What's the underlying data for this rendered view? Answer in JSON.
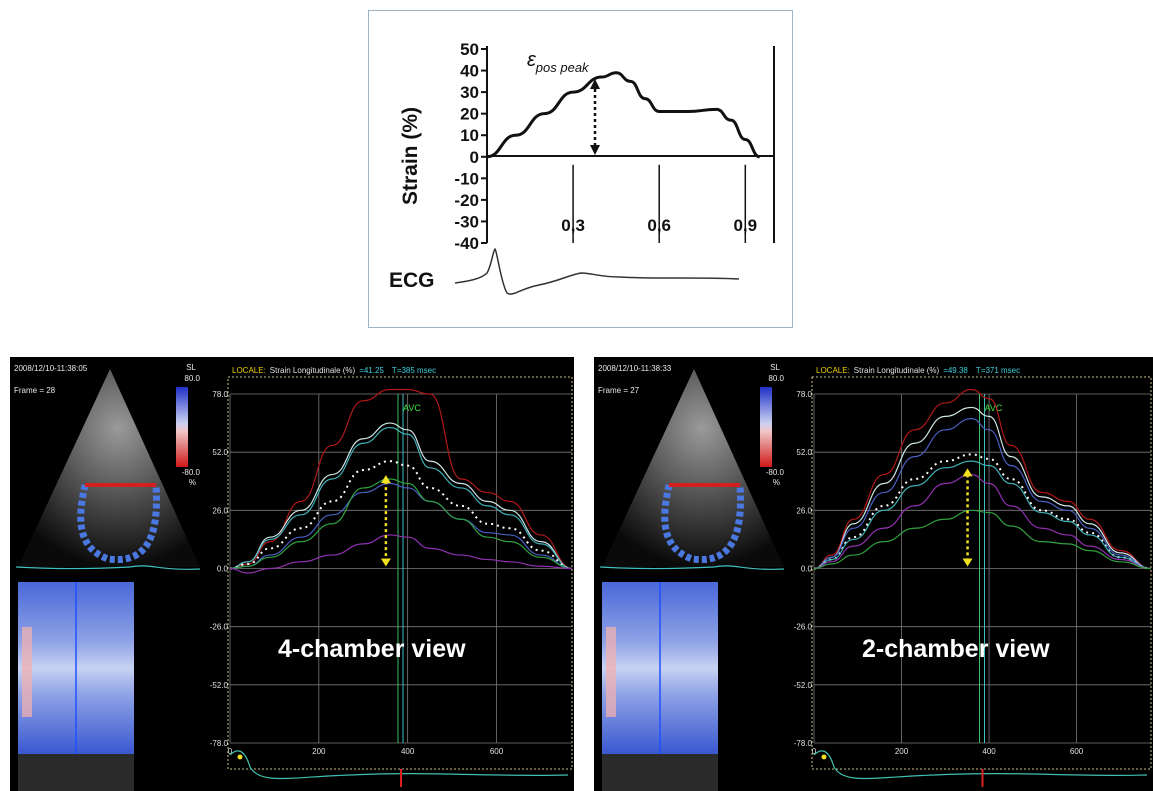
{
  "top_chart": {
    "ylabel": "Strain (%)",
    "peak_label_main": "ε",
    "peak_label_sub": "pos peak",
    "ecg_label": "ECG",
    "y_ticks": [
      "50",
      "40",
      "30",
      "20",
      "10",
      "0",
      "-10",
      "-20",
      "-30",
      "-40"
    ],
    "x_ticks": [
      "0,3",
      "0,6",
      "0,9"
    ]
  },
  "chart_data": [
    {
      "type": "line",
      "ylabel": "Strain (%)",
      "ylim": [
        -40,
        50
      ],
      "xlim": [
        0,
        1.0
      ],
      "x_ticks": [
        0.3,
        0.6,
        0.9
      ],
      "series": [
        {
          "x": [
            0,
            0.1,
            0.2,
            0.3,
            0.4,
            0.45,
            0.5,
            0.55,
            0.6,
            0.7,
            0.8,
            0.85,
            0.9,
            0.95
          ],
          "values": [
            0,
            10,
            20,
            30,
            37,
            39,
            35,
            27,
            21,
            21,
            22,
            17,
            8,
            0
          ]
        }
      ],
      "annotations": [
        "ε pos peak"
      ],
      "ecg_label": "ECG"
    },
    {
      "type": "line",
      "title": "LOCALE: Strain Longitudinale (%) =41.25 T=385 msec",
      "y_ticks": [
        "78.0",
        "52.0",
        "26.0",
        "0.0",
        "-26.0",
        "-52.0",
        "-78.0"
      ],
      "x_ticks": [
        "0",
        "200",
        "400",
        "600"
      ],
      "ylim": [
        -78,
        78
      ],
      "xlim": [
        0,
        770
      ],
      "annotations": [
        "AVC",
        "4-chamber view"
      ],
      "series": [
        {
          "color": "#b01818",
          "values": [
            0,
            2,
            12,
            30,
            55,
            75,
            80,
            80,
            78,
            40,
            34,
            30,
            15,
            0
          ]
        },
        {
          "color": "#cfe6e6",
          "values": [
            0,
            3,
            14,
            26,
            42,
            58,
            65,
            62,
            48,
            38,
            30,
            26,
            12,
            0
          ]
        },
        {
          "color": "#40b0b8",
          "values": [
            0,
            3,
            13,
            24,
            40,
            56,
            63,
            60,
            45,
            36,
            28,
            24,
            11,
            0
          ]
        },
        {
          "color": "#ffffff",
          "dashed": true,
          "values": [
            0,
            2,
            9,
            18,
            30,
            44,
            48,
            46,
            36,
            28,
            20,
            18,
            8,
            0
          ]
        },
        {
          "color": "#4a5fc0",
          "values": [
            0,
            1,
            6,
            14,
            24,
            34,
            38,
            36,
            30,
            22,
            16,
            15,
            6,
            0
          ]
        },
        {
          "color": "#30a040",
          "values": [
            0,
            1,
            5,
            12,
            20,
            36,
            40,
            38,
            30,
            22,
            14,
            12,
            5,
            0
          ]
        },
        {
          "color": "#9030b0",
          "values": [
            0,
            -2,
            0,
            3,
            6,
            11,
            15,
            14,
            9,
            6,
            4,
            3,
            1,
            0
          ]
        }
      ],
      "x": [
        0,
        40,
        90,
        160,
        230,
        300,
        360,
        400,
        450,
        520,
        580,
        630,
        700,
        770
      ]
    },
    {
      "type": "line",
      "title": "LOCALE: Strain Longitudinale (%) =49.38 T=371 msec",
      "y_ticks": [
        "78.0",
        "52.0",
        "26.0",
        "0.0",
        "-26.0",
        "-52.0",
        "-78.0"
      ],
      "x_ticks": [
        "0",
        "200",
        "400",
        "600"
      ],
      "ylim": [
        -78,
        78
      ],
      "xlim": [
        0,
        770
      ],
      "annotations": [
        "AVC",
        "2-chamber view"
      ],
      "series": [
        {
          "color": "#b01818",
          "values": [
            0,
            6,
            22,
            42,
            62,
            74,
            80,
            76,
            55,
            34,
            30,
            22,
            8,
            0
          ]
        },
        {
          "color": "#cfe6e6",
          "values": [
            0,
            5,
            20,
            38,
            56,
            68,
            72,
            68,
            50,
            32,
            28,
            20,
            7,
            0
          ]
        },
        {
          "color": "#4a5fc0",
          "values": [
            0,
            5,
            18,
            34,
            50,
            62,
            67,
            62,
            46,
            30,
            26,
            18,
            6,
            0
          ]
        },
        {
          "color": "#ffffff",
          "dashed": true,
          "values": [
            0,
            4,
            14,
            28,
            40,
            48,
            51,
            49,
            40,
            26,
            22,
            16,
            5,
            0
          ]
        },
        {
          "color": "#40b0b8",
          "values": [
            0,
            4,
            13,
            26,
            37,
            45,
            48,
            46,
            38,
            25,
            21,
            15,
            5,
            0
          ]
        },
        {
          "color": "#9030b0",
          "values": [
            0,
            3,
            10,
            18,
            28,
            38,
            42,
            38,
            28,
            18,
            15,
            10,
            4,
            0
          ]
        },
        {
          "color": "#30a040",
          "values": [
            0,
            2,
            6,
            12,
            18,
            22,
            26,
            25,
            19,
            12,
            11,
            8,
            3,
            0
          ]
        }
      ],
      "x": [
        0,
        40,
        90,
        160,
        230,
        300,
        360,
        400,
        450,
        520,
        580,
        630,
        700,
        770
      ]
    }
  ],
  "panels": [
    {
      "timestamp": "2008/12/10-11:38:05",
      "frame": "Frame = 28",
      "scale_label": "SL",
      "scale_max": "80.0",
      "scale_min": "-80.0",
      "scale_unit": "%",
      "header_locale": "LOCALE:",
      "header_text": "Strain Longitudinale (%)",
      "header_value": "=41.25",
      "header_time": "T=385 msec",
      "avc_label": "AVC",
      "view_label": "4-chamber view"
    },
    {
      "timestamp": "2008/12/10-11:38:33",
      "frame": "Frame = 27",
      "scale_label": "SL",
      "scale_max": "80.0",
      "scale_min": "-80.0",
      "scale_unit": "%",
      "header_locale": "LOCALE:",
      "header_text": "Strain Longitudinale (%)",
      "header_value": "=49.38",
      "header_time": "T=371 msec",
      "avc_label": "AVC",
      "view_label": "2-chamber view"
    }
  ]
}
